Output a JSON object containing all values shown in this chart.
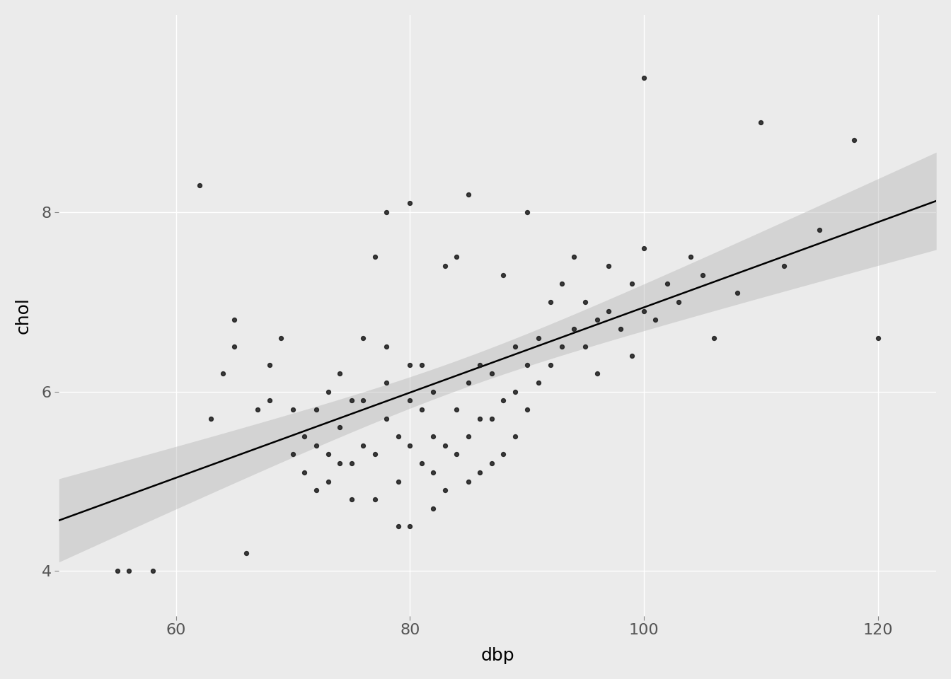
{
  "dbp": [
    55,
    56,
    58,
    62,
    63,
    64,
    65,
    65,
    66,
    67,
    68,
    68,
    69,
    70,
    70,
    71,
    71,
    72,
    72,
    72,
    73,
    73,
    73,
    74,
    74,
    74,
    75,
    75,
    75,
    76,
    76,
    76,
    77,
    77,
    77,
    78,
    78,
    78,
    78,
    79,
    79,
    79,
    80,
    80,
    80,
    80,
    80,
    81,
    81,
    81,
    82,
    82,
    82,
    82,
    83,
    83,
    83,
    84,
    84,
    84,
    85,
    85,
    85,
    85,
    86,
    86,
    86,
    87,
    87,
    87,
    88,
    88,
    88,
    89,
    89,
    89,
    90,
    90,
    90,
    91,
    91,
    92,
    92,
    93,
    93,
    94,
    94,
    95,
    95,
    96,
    96,
    97,
    97,
    98,
    99,
    99,
    100,
    100,
    100,
    101,
    102,
    103,
    104,
    105,
    106,
    108,
    110,
    112,
    115,
    118,
    120
  ],
  "chol": [
    4.0,
    4.0,
    4.0,
    8.3,
    5.7,
    6.2,
    6.5,
    6.8,
    4.2,
    5.8,
    5.9,
    6.3,
    6.6,
    5.3,
    5.8,
    5.1,
    5.5,
    4.9,
    5.4,
    5.8,
    5.0,
    5.3,
    6.0,
    5.2,
    5.6,
    6.2,
    4.8,
    5.2,
    5.9,
    5.4,
    5.9,
    6.6,
    4.8,
    5.3,
    7.5,
    5.7,
    6.1,
    6.5,
    8.0,
    4.5,
    5.0,
    5.5,
    4.5,
    5.4,
    5.9,
    6.3,
    8.1,
    5.2,
    5.8,
    6.3,
    4.7,
    5.1,
    5.5,
    6.0,
    4.9,
    5.4,
    7.4,
    5.3,
    5.8,
    7.5,
    5.0,
    5.5,
    6.1,
    8.2,
    5.1,
    5.7,
    6.3,
    5.2,
    5.7,
    6.2,
    5.3,
    5.9,
    7.3,
    5.5,
    6.0,
    6.5,
    5.8,
    6.3,
    8.0,
    6.1,
    6.6,
    6.3,
    7.0,
    6.5,
    7.2,
    6.7,
    7.5,
    6.5,
    7.0,
    6.8,
    6.2,
    6.9,
    7.4,
    6.7,
    7.2,
    6.4,
    9.5,
    6.9,
    7.6,
    6.8,
    7.2,
    7.0,
    7.5,
    7.3,
    6.6,
    7.1,
    9.0,
    7.4,
    7.8,
    8.8,
    6.6
  ],
  "xlabel": "dbp",
  "ylabel": "chol",
  "xlim": [
    50,
    125
  ],
  "ylim": [
    3.5,
    10.2
  ],
  "xticks": [
    60,
    80,
    100,
    120
  ],
  "yticks": [
    4,
    6,
    8
  ],
  "bg_color": "#ebebeb",
  "panel_bg": "#ebebeb",
  "grid_color": "#ffffff",
  "point_color": "#1a1a1a",
  "line_color": "#000000",
  "ci_color": "#b0b0b0",
  "ci_alpha": 0.4,
  "point_size": 18,
  "point_alpha": 0.85,
  "line_width": 1.8,
  "font_family": "DejaVu Sans",
  "axis_label_fontsize": 18,
  "tick_fontsize": 16
}
